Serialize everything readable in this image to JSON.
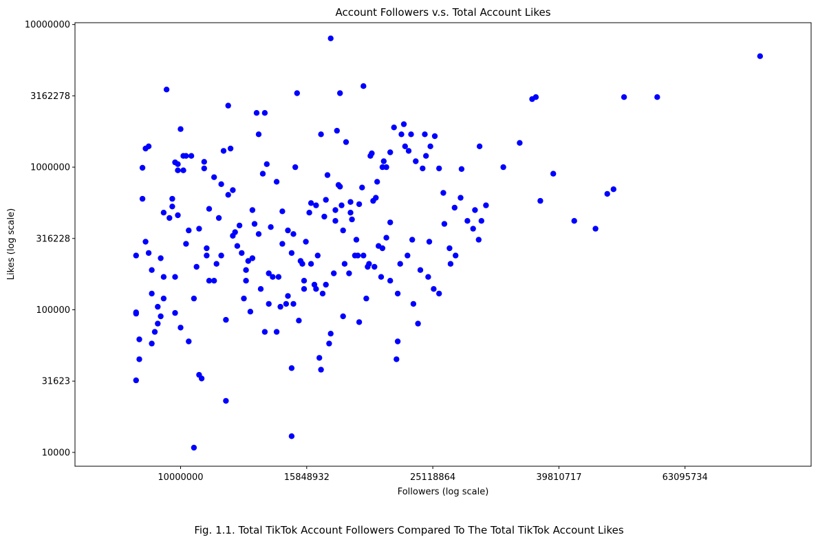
{
  "caption": "Fig. 1.1. Total TikTok Account Followers Compared To The Total TikTok Account Likes",
  "chart_data": {
    "type": "scatter",
    "title": "Account Followers v.s. Total Account Likes",
    "xlabel": "Followers (log scale)",
    "ylabel": "Likes (log scale)",
    "xscale": "log",
    "yscale": "log",
    "xlim": [
      6800000,
      100000000
    ],
    "ylim": [
      8000,
      10300000
    ],
    "x_ticks": [
      {
        "value": 10000000,
        "label": "10000000"
      },
      {
        "value": 15848932,
        "label": "15848932"
      },
      {
        "value": 25118864,
        "label": "25118864"
      },
      {
        "value": 39810717,
        "label": "39810717"
      },
      {
        "value": 63095734,
        "label": "63095734"
      }
    ],
    "y_ticks": [
      {
        "value": 10000,
        "label": "10000"
      },
      {
        "value": 31623,
        "label": "31623"
      },
      {
        "value": 100000,
        "label": "100000"
      },
      {
        "value": 316228,
        "label": "316228"
      },
      {
        "value": 1000000,
        "label": "1000000"
      },
      {
        "value": 3162278,
        "label": "3162278"
      },
      {
        "value": 10000000,
        "label": "10000000"
      }
    ],
    "grid": false,
    "marker_color": "#0000ff",
    "points": [
      [
        8500000,
        32000
      ],
      [
        8500000,
        240000
      ],
      [
        8500000,
        94000
      ],
      [
        8500000,
        96000
      ],
      [
        8600000,
        45000
      ],
      [
        8700000,
        600000
      ],
      [
        8700000,
        990000
      ],
      [
        8800000,
        1350000
      ],
      [
        8900000,
        1400000
      ],
      [
        8900000,
        250000
      ],
      [
        9000000,
        58000
      ],
      [
        9100000,
        70000
      ],
      [
        9200000,
        105000
      ],
      [
        9300000,
        230000
      ],
      [
        9400000,
        170000
      ],
      [
        9500000,
        3500000
      ],
      [
        9700000,
        530000
      ],
      [
        9800000,
        95000
      ],
      [
        9800000,
        1080000
      ],
      [
        9900000,
        1050000
      ],
      [
        9900000,
        950000
      ],
      [
        10000000,
        75000
      ],
      [
        10000000,
        1850000
      ],
      [
        10100000,
        1200000
      ],
      [
        10200000,
        1200000
      ],
      [
        10400000,
        1200000
      ],
      [
        10300000,
        60000
      ],
      [
        10500000,
        10800
      ],
      [
        10700000,
        35000
      ],
      [
        10800000,
        33000
      ],
      [
        10900000,
        980000
      ],
      [
        11000000,
        270000
      ],
      [
        11100000,
        160000
      ],
      [
        11300000,
        850000
      ],
      [
        11500000,
        440000
      ],
      [
        11600000,
        240000
      ],
      [
        11700000,
        1300000
      ],
      [
        11800000,
        23000
      ],
      [
        11900000,
        2700000
      ],
      [
        12000000,
        1350000
      ],
      [
        12100000,
        690000
      ],
      [
        12300000,
        280000
      ],
      [
        12500000,
        250000
      ],
      [
        12700000,
        190000
      ],
      [
        12800000,
        220000
      ],
      [
        12900000,
        97000
      ],
      [
        13100000,
        400000
      ],
      [
        13200000,
        2400000
      ],
      [
        13300000,
        1700000
      ],
      [
        13500000,
        900000
      ],
      [
        13600000,
        2400000
      ],
      [
        13700000,
        1050000
      ],
      [
        13800000,
        110000
      ],
      [
        14000000,
        170000
      ],
      [
        14200000,
        790000
      ],
      [
        14400000,
        105000
      ],
      [
        14500000,
        290000
      ],
      [
        14800000,
        125000
      ],
      [
        15000000,
        250000
      ],
      [
        15000000,
        13000
      ],
      [
        15000000,
        39000
      ],
      [
        15200000,
        1000000
      ],
      [
        15300000,
        3300000
      ],
      [
        15500000,
        220000
      ],
      [
        15700000,
        160000
      ],
      [
        15800000,
        300000
      ],
      [
        16000000,
        480000
      ],
      [
        16300000,
        150000
      ],
      [
        16400000,
        540000
      ],
      [
        16500000,
        240000
      ],
      [
        16700000,
        1700000
      ],
      [
        16800000,
        130000
      ],
      [
        16900000,
        450000
      ],
      [
        17000000,
        590000
      ],
      [
        17200000,
        58000
      ],
      [
        17300000,
        8000000
      ],
      [
        17500000,
        180000
      ],
      [
        17700000,
        1800000
      ],
      [
        17800000,
        750000
      ],
      [
        17900000,
        3300000
      ],
      [
        18000000,
        540000
      ],
      [
        18100000,
        90000
      ],
      [
        18300000,
        1500000
      ],
      [
        18500000,
        180000
      ],
      [
        18700000,
        430000
      ],
      [
        19000000,
        310000
      ],
      [
        19200000,
        82000
      ],
      [
        19400000,
        720000
      ],
      [
        19500000,
        3700000
      ],
      [
        19900000,
        210000
      ],
      [
        20000000,
        1200000
      ],
      [
        20100000,
        1250000
      ],
      [
        20400000,
        610000
      ],
      [
        20600000,
        280000
      ],
      [
        20900000,
        1000000
      ],
      [
        21000000,
        1100000
      ],
      [
        21200000,
        320000
      ],
      [
        21500000,
        1270000
      ],
      [
        22000000,
        45000
      ],
      [
        22300000,
        210000
      ],
      [
        22600000,
        2000000
      ],
      [
        22900000,
        240000
      ],
      [
        23200000,
        1700000
      ],
      [
        23400000,
        110000
      ],
      [
        23800000,
        80000
      ],
      [
        24200000,
        980000
      ],
      [
        24500000,
        1200000
      ],
      [
        24700000,
        170000
      ],
      [
        24900000,
        1400000
      ],
      [
        25200000,
        140000
      ],
      [
        25700000,
        980000
      ],
      [
        26100000,
        660000
      ],
      [
        26800000,
        210000
      ],
      [
        27200000,
        520000
      ],
      [
        27900000,
        970000
      ],
      [
        29300000,
        500000
      ],
      [
        29800000,
        1400000
      ],
      [
        30000000,
        420000
      ],
      [
        30500000,
        540000
      ],
      [
        32500000,
        1000000
      ],
      [
        34500000,
        1480000
      ],
      [
        36100000,
        3000000
      ],
      [
        36600000,
        3100000
      ],
      [
        37200000,
        580000
      ],
      [
        39000000,
        900000
      ],
      [
        42100000,
        420000
      ],
      [
        45500000,
        370000
      ],
      [
        47500000,
        650000
      ],
      [
        48600000,
        700000
      ],
      [
        50500000,
        3100000
      ],
      [
        57000000,
        3100000
      ],
      [
        83000000,
        6000000
      ],
      [
        8600000,
        62000
      ],
      [
        8800000,
        300000
      ],
      [
        9000000,
        130000
      ],
      [
        9200000,
        80000
      ],
      [
        9300000,
        90000
      ],
      [
        9400000,
        480000
      ],
      [
        9600000,
        440000
      ],
      [
        9700000,
        600000
      ],
      [
        9900000,
        460000
      ],
      [
        10100000,
        950000
      ],
      [
        10300000,
        360000
      ],
      [
        10500000,
        120000
      ],
      [
        10700000,
        370000
      ],
      [
        10900000,
        1090000
      ],
      [
        11100000,
        510000
      ],
      [
        11300000,
        160000
      ],
      [
        11600000,
        760000
      ],
      [
        11900000,
        640000
      ],
      [
        12100000,
        330000
      ],
      [
        12400000,
        390000
      ],
      [
        12700000,
        160000
      ],
      [
        13000000,
        500000
      ],
      [
        13300000,
        340000
      ],
      [
        13600000,
        70000
      ],
      [
        13900000,
        380000
      ],
      [
        14200000,
        70000
      ],
      [
        14500000,
        490000
      ],
      [
        14800000,
        360000
      ],
      [
        15100000,
        110000
      ],
      [
        15400000,
        84000
      ],
      [
        15700000,
        140000
      ],
      [
        16100000,
        210000
      ],
      [
        16400000,
        140000
      ],
      [
        16700000,
        38000
      ],
      [
        17000000,
        150000
      ],
      [
        17300000,
        68000
      ],
      [
        17600000,
        500000
      ],
      [
        17900000,
        730000
      ],
      [
        18200000,
        210000
      ],
      [
        18600000,
        570000
      ],
      [
        18900000,
        240000
      ],
      [
        19200000,
        550000
      ],
      [
        19500000,
        240000
      ],
      [
        19800000,
        200000
      ],
      [
        20200000,
        580000
      ],
      [
        20500000,
        790000
      ],
      [
        20800000,
        170000
      ],
      [
        21200000,
        1000000
      ],
      [
        21500000,
        410000
      ],
      [
        21800000,
        1900000
      ],
      [
        22100000,
        60000
      ],
      [
        22400000,
        1700000
      ],
      [
        22700000,
        1400000
      ],
      [
        23000000,
        1300000
      ],
      [
        23300000,
        310000
      ],
      [
        23600000,
        1100000
      ],
      [
        24000000,
        190000
      ],
      [
        24400000,
        1700000
      ],
      [
        24800000,
        300000
      ],
      [
        25300000,
        1650000
      ],
      [
        25700000,
        130000
      ],
      [
        26200000,
        400000
      ],
      [
        26700000,
        270000
      ],
      [
        27300000,
        240000
      ],
      [
        27800000,
        610000
      ],
      [
        28500000,
        420000
      ],
      [
        29100000,
        370000
      ],
      [
        29700000,
        310000
      ],
      [
        9000000,
        190000
      ],
      [
        9400000,
        120000
      ],
      [
        9800000,
        170000
      ],
      [
        10200000,
        290000
      ],
      [
        10600000,
        200000
      ],
      [
        11000000,
        240000
      ],
      [
        11400000,
        210000
      ],
      [
        11800000,
        85000
      ],
      [
        12200000,
        350000
      ],
      [
        12600000,
        120000
      ],
      [
        13000000,
        230000
      ],
      [
        13400000,
        140000
      ],
      [
        13800000,
        180000
      ],
      [
        14300000,
        170000
      ],
      [
        14700000,
        110000
      ],
      [
        15100000,
        340000
      ],
      [
        15600000,
        210000
      ],
      [
        16100000,
        560000
      ],
      [
        16600000,
        46000
      ],
      [
        17100000,
        880000
      ],
      [
        17600000,
        420000
      ],
      [
        18100000,
        360000
      ],
      [
        18600000,
        480000
      ],
      [
        19100000,
        240000
      ],
      [
        19700000,
        120000
      ],
      [
        20300000,
        200000
      ],
      [
        20900000,
        270000
      ],
      [
        21500000,
        160000
      ],
      [
        22100000,
        130000
      ]
    ]
  }
}
